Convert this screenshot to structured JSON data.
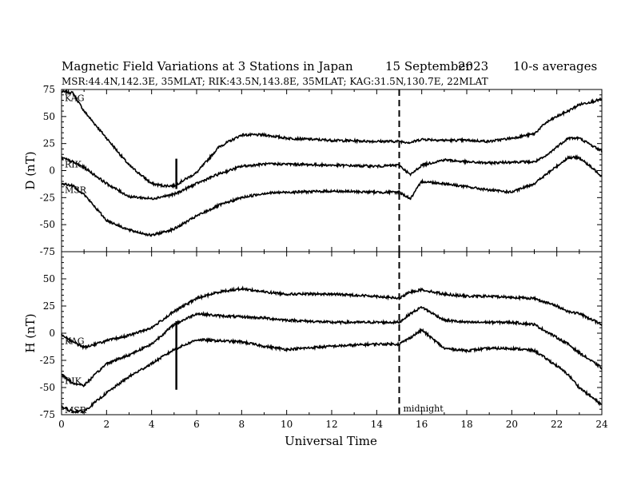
{
  "header": {
    "title": "Magnetic Field Variations at 3 Stations in Japan",
    "date": "15 September",
    "year": "2023",
    "averaging": "10-s averages",
    "stations_line": "MSR:44.4N,142.3E, 35MLAT;  RIK:43.5N,143.8E, 35MLAT;  KAG:31.5N,130.7E, 22MLAT"
  },
  "chart_data": [
    {
      "type": "line",
      "panel": "D",
      "ylabel": "D (nT)",
      "xlabel": "Universal Time",
      "xlim": [
        0,
        24
      ],
      "ylim": [
        -75,
        75
      ],
      "x_ticks": [
        0,
        2,
        4,
        6,
        8,
        10,
        12,
        14,
        16,
        18,
        20,
        22,
        24
      ],
      "y_ticks": [
        75,
        50,
        25,
        0,
        -25,
        -50,
        -75
      ],
      "series": [
        {
          "name": "KAG",
          "x": [
            0,
            0.5,
            1,
            2,
            3,
            4,
            4.5,
            5,
            6,
            7,
            8,
            9,
            10,
            12,
            14,
            15,
            15.5,
            16,
            17,
            18,
            19,
            20,
            21,
            21.5,
            22,
            22.5,
            23,
            24
          ],
          "values": [
            73,
            72,
            55,
            30,
            5,
            -12,
            -14,
            -14,
            -2,
            22,
            33,
            33,
            30,
            28,
            27,
            27,
            26,
            29,
            28,
            28,
            27,
            30,
            34,
            44,
            50,
            55,
            61,
            66
          ]
        },
        {
          "name": "RIK",
          "x": [
            0,
            0.5,
            1,
            2,
            3,
            4,
            5,
            6,
            7,
            8,
            9,
            10,
            12,
            14,
            15,
            15.5,
            16,
            17,
            18,
            19,
            20,
            21,
            21.5,
            22,
            22.5,
            23,
            24
          ],
          "values": [
            12,
            8,
            3,
            -12,
            -24,
            -26,
            -22,
            -12,
            -3,
            4,
            6,
            6,
            5,
            4,
            5,
            -4,
            5,
            10,
            8,
            7,
            8,
            8,
            13,
            22,
            30,
            30,
            18
          ]
        },
        {
          "name": "MSR",
          "x": [
            0,
            0.5,
            1,
            2,
            3,
            4,
            5,
            6,
            7,
            8,
            9,
            10,
            12,
            14,
            15,
            15.5,
            16,
            17,
            18,
            19,
            20,
            21,
            21.5,
            22,
            22.5,
            23,
            24
          ],
          "values": [
            -12,
            -14,
            -22,
            -46,
            -55,
            -60,
            -54,
            -42,
            -32,
            -25,
            -21,
            -20,
            -19,
            -20,
            -20,
            -26,
            -10,
            -12,
            -15,
            -18,
            -20,
            -12,
            -4,
            4,
            12,
            12,
            -5
          ]
        }
      ],
      "markers": [
        {
          "x": 5.1,
          "from": -17,
          "to": 11
        }
      ],
      "annotations": [],
      "grid": false
    },
    {
      "type": "line",
      "panel": "H",
      "ylabel": "H (nT)",
      "xlabel": "Universal Time",
      "xlim": [
        0,
        24
      ],
      "ylim": [
        -75,
        75
      ],
      "x_ticks": [
        0,
        2,
        4,
        6,
        8,
        10,
        12,
        14,
        16,
        18,
        20,
        22,
        24
      ],
      "y_ticks": [
        50,
        25,
        0,
        -25,
        -50,
        -75
      ],
      "series": [
        {
          "name": "KAG",
          "x": [
            0,
            0.5,
            1,
            2,
            3,
            4,
            5,
            6,
            7,
            8,
            9,
            10,
            12,
            14,
            15,
            15.5,
            16,
            17,
            18,
            19,
            20,
            21,
            22,
            22.5,
            23,
            24
          ],
          "values": [
            -1,
            -8,
            -13,
            -7,
            -2,
            5,
            20,
            32,
            38,
            41,
            38,
            36,
            36,
            34,
            32,
            38,
            40,
            36,
            34,
            34,
            33,
            32,
            25,
            20,
            18,
            8
          ]
        },
        {
          "name": "RIK",
          "x": [
            0,
            0.5,
            1,
            2,
            3,
            4,
            5,
            6,
            7,
            8,
            9,
            10,
            12,
            14,
            15,
            15.5,
            16,
            17,
            18,
            19,
            20,
            21,
            22,
            22.5,
            23,
            24
          ],
          "values": [
            -38,
            -46,
            -48,
            -28,
            -20,
            -10,
            8,
            18,
            16,
            15,
            14,
            12,
            10,
            10,
            10,
            18,
            24,
            12,
            10,
            10,
            10,
            8,
            -4,
            -10,
            -18,
            -32
          ]
        },
        {
          "name": "MSR",
          "x": [
            0,
            0.5,
            1,
            2,
            3,
            4,
            5,
            6,
            7,
            8,
            9,
            10,
            12,
            14,
            15,
            15.5,
            16,
            17,
            18,
            19,
            20,
            21,
            22,
            22.5,
            23,
            24
          ],
          "values": [
            -68,
            -72,
            -72,
            -55,
            -40,
            -28,
            -15,
            -6,
            -7,
            -8,
            -12,
            -15,
            -12,
            -10,
            -10,
            -4,
            3,
            -14,
            -16,
            -14,
            -14,
            -16,
            -30,
            -38,
            -50,
            -66
          ]
        }
      ],
      "markers": [
        {
          "x": 5.1,
          "from": -52,
          "to": 11
        }
      ],
      "annotations": [
        {
          "x": 15,
          "text": "midnight"
        }
      ],
      "grid": false
    }
  ],
  "midnight_ut": 15
}
